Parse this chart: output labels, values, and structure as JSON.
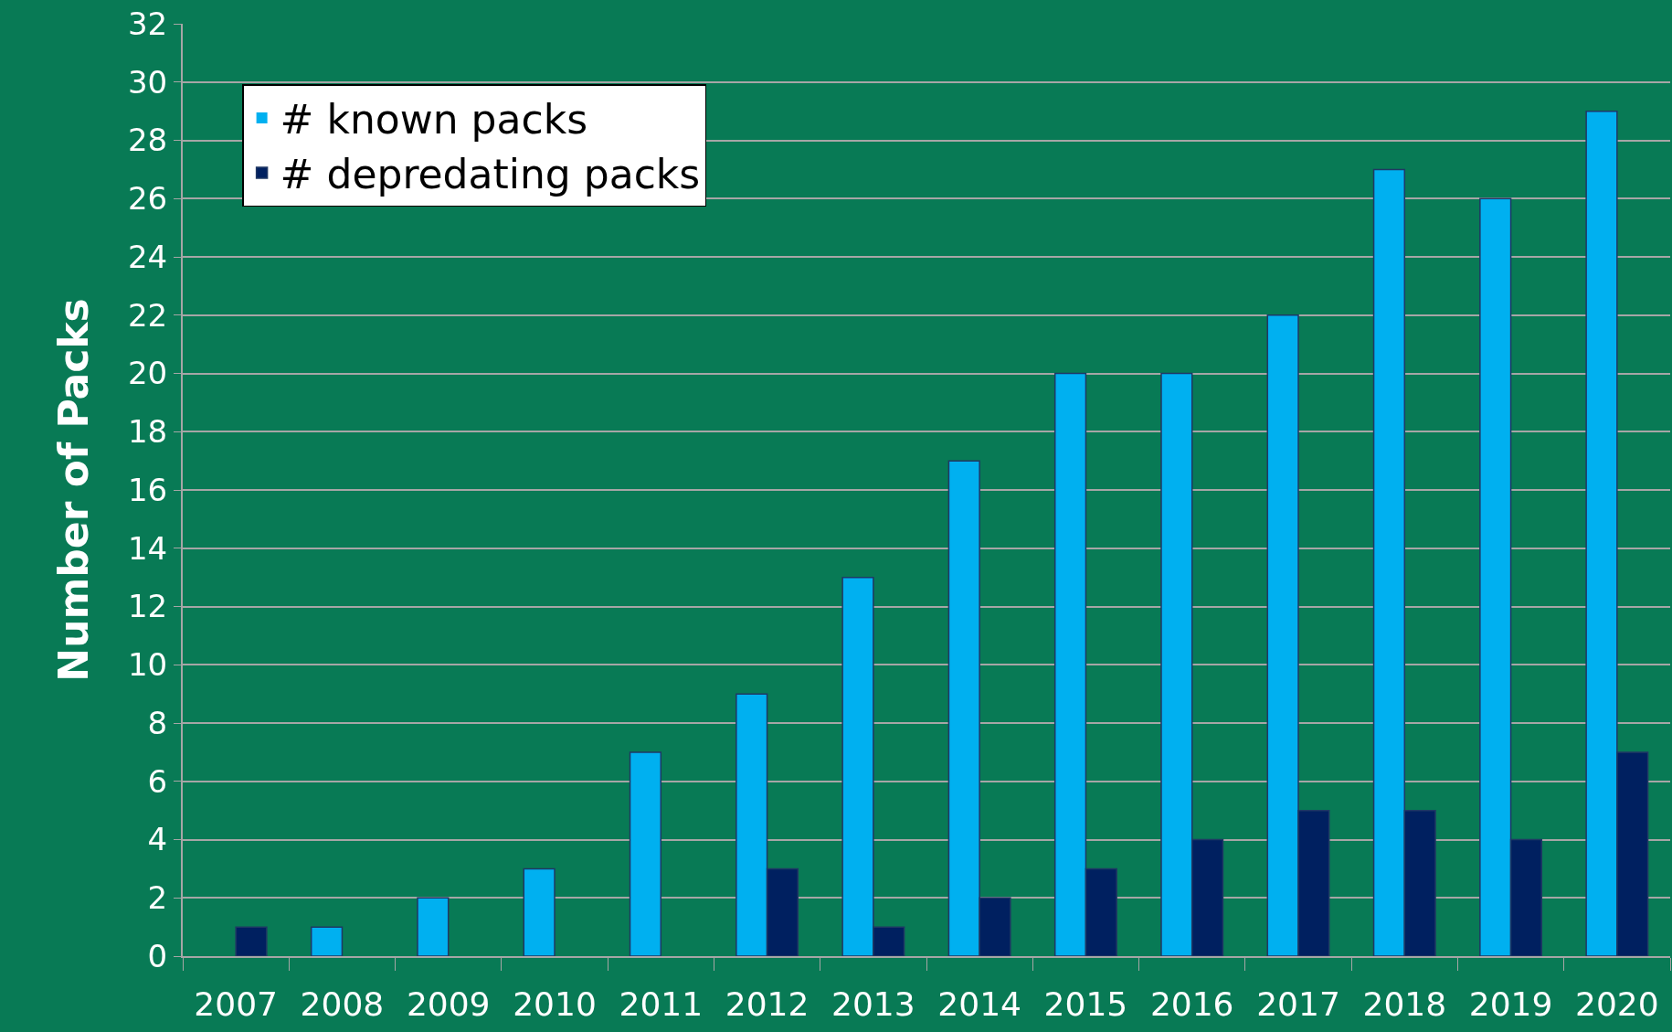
{
  "chart_data": {
    "type": "bar",
    "ylabel": "Number of Packs",
    "categories": [
      "2007",
      "2008",
      "2009",
      "2010",
      "2011",
      "2012",
      "2013",
      "2014",
      "2015",
      "2016",
      "2017",
      "2018",
      "2019",
      "2020"
    ],
    "series": [
      {
        "name": "# known packs",
        "color": "#00b0f0",
        "values": [
          0,
          1,
          2,
          3,
          7,
          9,
          13,
          17,
          20,
          20,
          22,
          27,
          26,
          29
        ]
      },
      {
        "name": "# depredating packs",
        "color": "#002060",
        "values": [
          1,
          0,
          0,
          0,
          0,
          3,
          1,
          2,
          3,
          4,
          5,
          5,
          4,
          7
        ]
      }
    ],
    "ylim": [
      0,
      32
    ],
    "yticks": [
      0,
      2,
      4,
      6,
      8,
      10,
      12,
      14,
      16,
      18,
      20,
      22,
      24,
      26,
      28,
      30,
      32
    ],
    "grid": "y",
    "legend": "top left"
  }
}
